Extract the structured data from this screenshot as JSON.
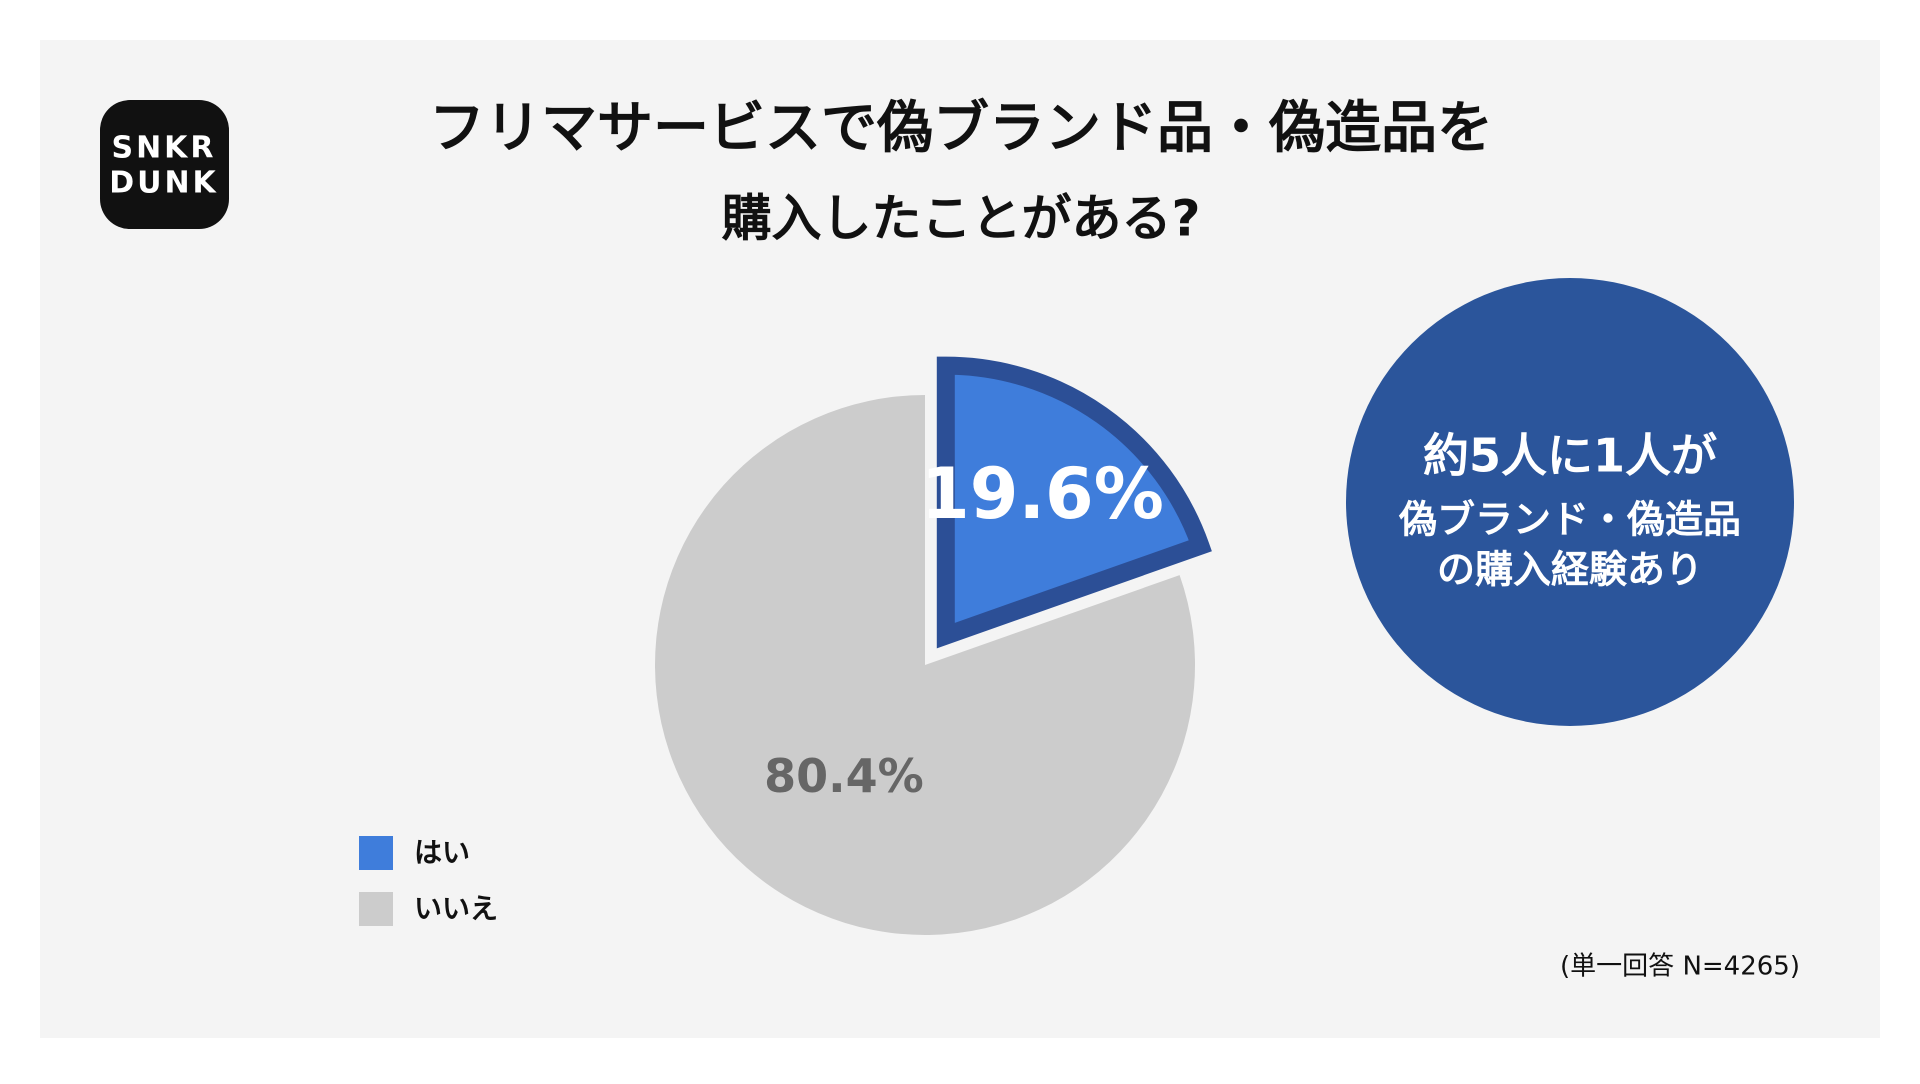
{
  "logo": [
    "SNKR",
    "DUNK"
  ],
  "chart_data": {
    "type": "pie",
    "title": [
      "フリマサービスで偽ブランド品・偽造品を",
      "購入したことがある?"
    ],
    "categories": [
      "はい",
      "いいえ"
    ],
    "values": [
      19.6,
      80.4
    ],
    "value_labels": [
      "19.6%",
      "80.4%"
    ],
    "colors": [
      "#3f7ddb",
      "#cccccc"
    ],
    "exploded": [
      true,
      false
    ],
    "annotation": [
      "約5人に1人が",
      "偽ブランド・偽造品",
      "の購入経験あり"
    ],
    "note": "(単一回答 N=4265)"
  }
}
